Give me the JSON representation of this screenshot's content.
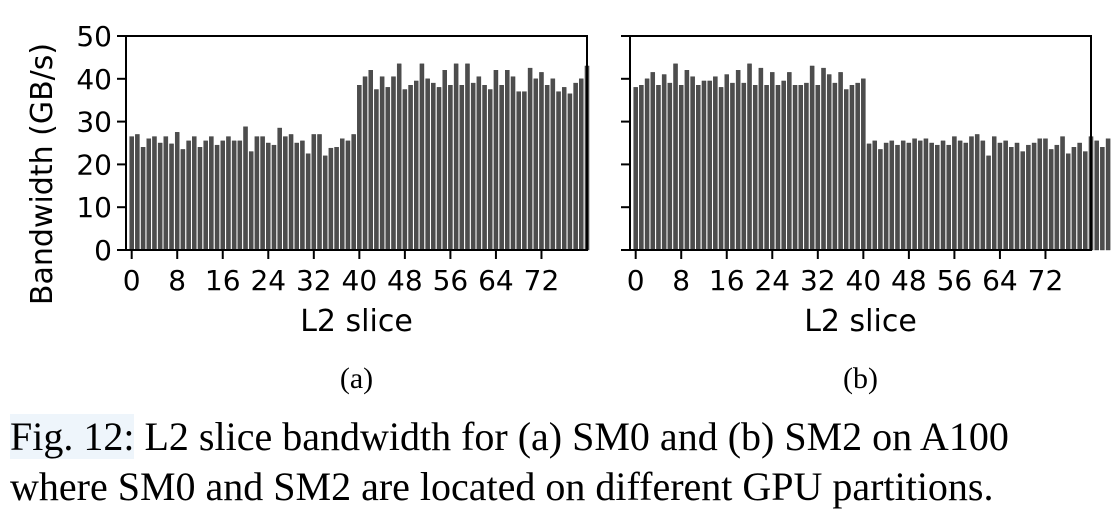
{
  "chart_data": [
    {
      "type": "bar",
      "panel_label": "(a)",
      "xlabel": "L2 slice",
      "ylabel": "Bandwidth (GB/s)",
      "ylim": [
        0,
        50
      ],
      "yticks": [
        0,
        10,
        20,
        30,
        40,
        50
      ],
      "xticks": [
        0,
        8,
        16,
        24,
        32,
        40,
        48,
        56,
        64,
        72
      ],
      "xlim": [
        -1,
        80
      ],
      "values": [
        26.5,
        27.0,
        24.0,
        26.0,
        26.5,
        25.0,
        26.5,
        24.8,
        27.5,
        23.5,
        25.5,
        26.5,
        24.0,
        25.5,
        26.5,
        24.5,
        25.5,
        26.5,
        25.5,
        25.5,
        28.8,
        23.0,
        26.5,
        26.5,
        25.0,
        24.5,
        28.5,
        26.5,
        27.0,
        25.0,
        25.5,
        22.5,
        27.0,
        27.0,
        22.0,
        23.8,
        24.0,
        26.0,
        25.5,
        27.0,
        38.5,
        40.5,
        42.0,
        37.5,
        40.5,
        38.0,
        40.5,
        43.5,
        37.5,
        38.5,
        39.5,
        43.5,
        40.0,
        39.0,
        38.0,
        42.0,
        38.5,
        43.5,
        38.5,
        43.5,
        39.0,
        40.5,
        38.5,
        37.5,
        42.0,
        38.5,
        42.0,
        40.5,
        37.0,
        37.0,
        42.5,
        40.0,
        41.5,
        38.5,
        40.0,
        37.0,
        38.0,
        36.5,
        39.0,
        40.0,
        43.0
      ]
    },
    {
      "type": "bar",
      "panel_label": "(b)",
      "xlabel": "L2 slice",
      "ylabel": "",
      "ylim": [
        0,
        50
      ],
      "yticks": [
        0,
        10,
        20,
        30,
        40,
        50
      ],
      "xticks": [
        0,
        8,
        16,
        24,
        32,
        40,
        48,
        56,
        64,
        72
      ],
      "xlim": [
        -1,
        80
      ],
      "values": [
        38.0,
        38.5,
        40.0,
        41.5,
        38.5,
        41.0,
        39.0,
        43.5,
        38.5,
        42.0,
        40.5,
        38.5,
        39.5,
        39.5,
        40.5,
        38.0,
        41.0,
        39.0,
        42.0,
        39.0,
        43.5,
        38.5,
        42.5,
        38.5,
        41.5,
        38.5,
        39.5,
        41.5,
        38.5,
        38.5,
        39.0,
        43.0,
        38.5,
        42.5,
        41.0,
        39.0,
        41.5,
        37.5,
        38.5,
        39.0,
        40.0,
        24.8,
        25.5,
        23.5,
        25.0,
        25.5,
        24.5,
        25.5,
        25.0,
        26.0,
        25.5,
        26.0,
        25.0,
        24.5,
        25.5,
        24.5,
        26.5,
        25.5,
        25.0,
        26.5,
        27.0,
        25.5,
        22.0,
        26.5,
        25.0,
        25.5,
        24.0,
        25.0,
        23.0,
        24.5,
        25.0,
        26.0,
        26.0,
        23.5,
        24.5,
        26.5,
        22.5,
        24.0,
        25.0,
        23.0,
        26.5,
        25.5,
        24.0,
        26.0
      ]
    }
  ],
  "caption": {
    "label": "Fig. 12:",
    "text": " L2 slice bandwidth for (a) SM0 and (b) SM2 on A100 where SM0 and SM2 are located on different GPU partitions."
  },
  "colors": {
    "bar": "#4d4d4d",
    "bar_edge": "#3a3a3a",
    "axis": "#000000"
  }
}
